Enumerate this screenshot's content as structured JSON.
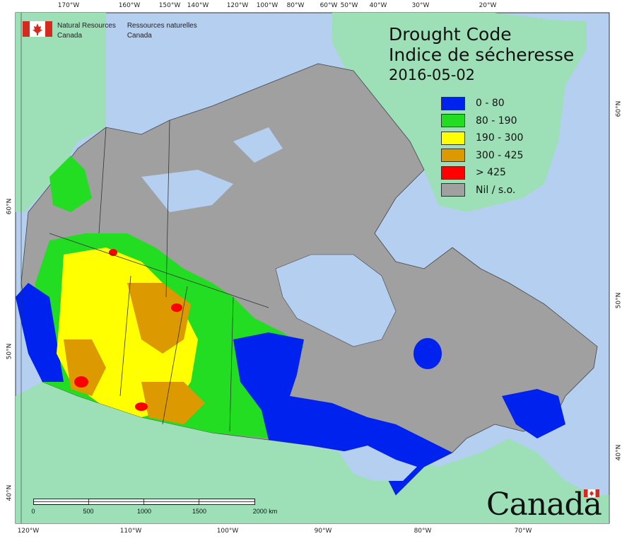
{
  "title": {
    "en": "Drought Code",
    "fr": "Indice de sécheresse",
    "date": "2016-05-02"
  },
  "legend": [
    {
      "label": "0 - 80",
      "color": "#0022ee"
    },
    {
      "label": "80 - 190",
      "color": "#22dd22"
    },
    {
      "label": "190 - 300",
      "color": "#ffff00"
    },
    {
      "label": "300 - 425",
      "color": "#dd9900"
    },
    {
      "label": "> 425",
      "color": "#ff0000"
    },
    {
      "label": "Nil / s.o.",
      "color": "#a0a0a0"
    }
  ],
  "agency": {
    "en_line1": "Natural Resources",
    "en_line2": "Canada",
    "fr_line1": "Ressources naturelles",
    "fr_line2": "Canada"
  },
  "top_ticks": [
    "170°W",
    "160°W",
    "150°W",
    "140°W",
    "120°W",
    "100°W",
    "80°W",
    "60°W",
    "50°W",
    "40°W",
    "30°W",
    "20°W"
  ],
  "bottom_ticks": [
    "120°W",
    "110°W",
    "100°W",
    "90°W",
    "80°W",
    "70°W"
  ],
  "left_ticks": [
    "60°N",
    "50°N",
    "40°N"
  ],
  "right_ticks": [
    "60°N",
    "50°N",
    "40°N"
  ],
  "scale": {
    "labels": [
      "0",
      "500",
      "1000",
      "1500",
      "2000 km"
    ]
  },
  "wordmark": "Canada",
  "colors": {
    "ocean": "#b4cff0",
    "land_other": "#9de0b8",
    "nil": "#a0a0a0",
    "border": "#333333"
  }
}
